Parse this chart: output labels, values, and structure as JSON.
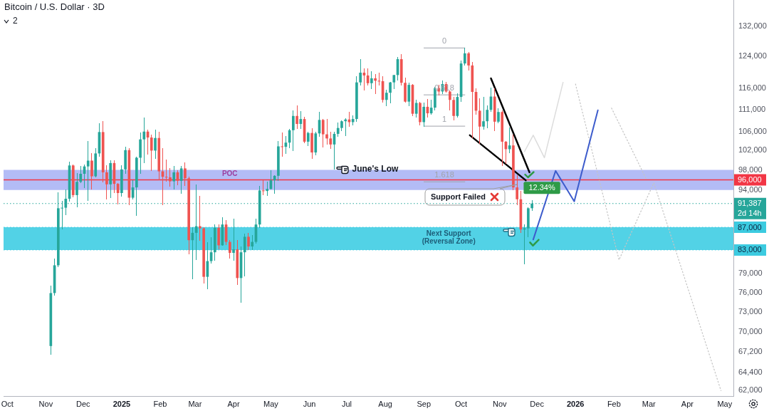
{
  "chart_data": {
    "type": "candlestick",
    "title": "Bitcoin / U.S. Dollar · 3D",
    "log": true,
    "xlim": [
      "2024-09-28",
      "2026-05-08"
    ],
    "xticks": [
      {
        "value": "2024-10-01",
        "label": "Oct"
      },
      {
        "value": "2024-11-01",
        "label": "Nov"
      },
      {
        "value": "2024-12-01",
        "label": "Dec"
      },
      {
        "value": "2025-01-01",
        "label": "2025"
      },
      {
        "value": "2025-02-01",
        "label": "Feb"
      },
      {
        "value": "2025-03-01",
        "label": "Mar"
      },
      {
        "value": "2025-04-01",
        "label": "Apr"
      },
      {
        "value": "2025-05-01",
        "label": "May"
      },
      {
        "value": "2025-06-01",
        "label": "Jun"
      },
      {
        "value": "2025-07-01",
        "label": "Jul"
      },
      {
        "value": "2025-08-01",
        "label": "Aug"
      },
      {
        "value": "2025-09-01",
        "label": "Sep"
      },
      {
        "value": "2025-10-01",
        "label": "Oct"
      },
      {
        "value": "2025-11-01",
        "label": "Nov"
      },
      {
        "value": "2025-12-01",
        "label": "Dec"
      },
      {
        "value": "2026-01-01",
        "label": "2026"
      },
      {
        "value": "2026-02-01",
        "label": "Feb"
      },
      {
        "value": "2026-03-01",
        "label": "Mar"
      },
      {
        "value": "2026-04-01",
        "label": "Apr"
      },
      {
        "value": "2026-05-01",
        "label": "May"
      }
    ],
    "ylim": [
      61300,
      139400
    ],
    "yticks": [
      {
        "value": 62000,
        "label": "62,000"
      },
      {
        "value": 64400,
        "label": "64,400"
      },
      {
        "value": 67200,
        "label": "67,200"
      },
      {
        "value": 70000,
        "label": "70,000"
      },
      {
        "value": 73000,
        "label": "73,000"
      },
      {
        "value": 76000,
        "label": "76,000"
      },
      {
        "value": 79000,
        "label": "79,000"
      },
      {
        "value": 94000,
        "label": "94,000"
      },
      {
        "value": 98000,
        "label": "98,000"
      },
      {
        "value": 102000,
        "label": "102,000"
      },
      {
        "value": 106000,
        "label": "106,000"
      },
      {
        "value": 111000,
        "label": "111,000"
      },
      {
        "value": 116000,
        "label": "116,000"
      },
      {
        "value": 124000,
        "label": "124,000"
      },
      {
        "value": 132000,
        "label": "132,000"
      }
    ],
    "x": [
      "2024-11-05",
      "2024-11-08",
      "2024-11-11",
      "2024-11-14",
      "2024-11-17",
      "2024-11-20",
      "2024-11-23",
      "2024-11-26",
      "2024-11-29",
      "2024-12-02",
      "2024-12-05",
      "2024-12-08",
      "2024-12-11",
      "2024-12-14",
      "2024-12-17",
      "2024-12-20",
      "2024-12-23",
      "2024-12-26",
      "2024-12-29",
      "2025-01-01",
      "2025-01-04",
      "2025-01-07",
      "2025-01-10",
      "2025-01-13",
      "2025-01-16",
      "2025-01-19",
      "2025-01-22",
      "2025-01-25",
      "2025-01-28",
      "2025-01-31",
      "2025-02-03",
      "2025-02-06",
      "2025-02-09",
      "2025-02-12",
      "2025-02-15",
      "2025-02-18",
      "2025-02-21",
      "2025-02-24",
      "2025-02-27",
      "2025-03-02",
      "2025-03-05",
      "2025-03-08",
      "2025-03-11",
      "2025-03-14",
      "2025-03-17",
      "2025-03-20",
      "2025-03-23",
      "2025-03-26",
      "2025-03-29",
      "2025-04-01",
      "2025-04-04",
      "2025-04-07",
      "2025-04-10",
      "2025-04-13",
      "2025-04-16",
      "2025-04-19",
      "2025-04-22",
      "2025-04-25",
      "2025-04-28",
      "2025-05-01",
      "2025-05-04",
      "2025-05-07",
      "2025-05-10",
      "2025-05-13",
      "2025-05-16",
      "2025-05-19",
      "2025-05-22",
      "2025-05-25",
      "2025-05-28",
      "2025-05-31",
      "2025-06-03",
      "2025-06-06",
      "2025-06-09",
      "2025-06-12",
      "2025-06-15",
      "2025-06-18",
      "2025-06-21",
      "2025-06-24",
      "2025-06-27",
      "2025-06-30",
      "2025-07-03",
      "2025-07-06",
      "2025-07-09",
      "2025-07-12",
      "2025-07-15",
      "2025-07-18",
      "2025-07-21",
      "2025-07-24",
      "2025-07-27",
      "2025-07-30",
      "2025-08-02",
      "2025-08-05",
      "2025-08-08",
      "2025-08-11",
      "2025-08-14",
      "2025-08-17",
      "2025-08-20",
      "2025-08-23",
      "2025-08-26",
      "2025-08-29",
      "2025-09-01",
      "2025-09-04",
      "2025-09-07",
      "2025-09-10",
      "2025-09-13",
      "2025-09-16",
      "2025-09-19",
      "2025-09-22",
      "2025-09-25",
      "2025-09-28",
      "2025-10-01",
      "2025-10-04",
      "2025-10-07",
      "2025-10-10",
      "2025-10-13",
      "2025-10-16",
      "2025-10-19",
      "2025-10-22",
      "2025-10-25",
      "2025-10-28",
      "2025-10-31",
      "2025-11-03",
      "2025-11-06",
      "2025-11-09",
      "2025-11-12",
      "2025-11-15",
      "2025-11-18",
      "2025-11-21",
      "2025-11-24",
      "2025-11-27"
    ],
    "ohlc": [
      [
        68000,
        77000,
        66800,
        75900
      ],
      [
        75900,
        81500,
        75600,
        80400
      ],
      [
        80400,
        93500,
        80200,
        90500
      ],
      [
        90500,
        91800,
        86700,
        90600
      ],
      [
        90600,
        94000,
        89300,
        92300
      ],
      [
        92300,
        99600,
        91800,
        98900
      ],
      [
        98900,
        99000,
        92600,
        93000
      ],
      [
        93000,
        97300,
        90800,
        95600
      ],
      [
        95600,
        98700,
        95400,
        97200
      ],
      [
        97200,
        99000,
        94500,
        98700
      ],
      [
        98700,
        104000,
        92000,
        99900
      ],
      [
        99900,
        101400,
        94200,
        96700
      ],
      [
        96700,
        102500,
        96600,
        101400
      ],
      [
        101400,
        107800,
        100800,
        106000
      ],
      [
        106000,
        108300,
        95600,
        97500
      ],
      [
        97500,
        98900,
        92200,
        95100
      ],
      [
        95100,
        99900,
        92500,
        99400
      ],
      [
        99400,
        99900,
        93500,
        95200
      ],
      [
        95200,
        95300,
        91300,
        93400
      ],
      [
        93400,
        98900,
        92800,
        98100
      ],
      [
        98100,
        102700,
        97300,
        102100
      ],
      [
        102100,
        102500,
        91200,
        92500
      ],
      [
        92500,
        95800,
        92200,
        94500
      ],
      [
        94500,
        100700,
        89200,
        100500
      ],
      [
        100500,
        105900,
        97300,
        104400
      ],
      [
        104400,
        109100,
        99500,
        106100
      ],
      [
        106100,
        106400,
        101200,
        104800
      ],
      [
        104800,
        105400,
        97800,
        102000
      ],
      [
        102000,
        106500,
        100300,
        104700
      ],
      [
        104700,
        106000,
        96000,
        97700
      ],
      [
        97700,
        102500,
        91200,
        96600
      ],
      [
        96600,
        100100,
        95700,
        96500
      ],
      [
        96500,
        98300,
        94700,
        95700
      ],
      [
        95700,
        98700,
        94100,
        97500
      ],
      [
        97500,
        97900,
        95000,
        95800
      ],
      [
        95800,
        98700,
        93400,
        98300
      ],
      [
        98300,
        99500,
        94900,
        96300
      ],
      [
        96300,
        96500,
        82300,
        84700
      ],
      [
        84700,
        87000,
        78200,
        86000
      ],
      [
        86000,
        95000,
        81400,
        87200
      ],
      [
        87200,
        92800,
        84700,
        86800
      ],
      [
        86800,
        86900,
        77500,
        78500
      ],
      [
        78500,
        84300,
        76600,
        81100
      ],
      [
        81100,
        85100,
        80800,
        82600
      ],
      [
        82600,
        87400,
        81200,
        86900
      ],
      [
        86900,
        87400,
        83200,
        83800
      ],
      [
        83800,
        88700,
        83800,
        87500
      ],
      [
        87500,
        88300,
        83900,
        84400
      ],
      [
        84400,
        84600,
        81600,
        82500
      ],
      [
        82500,
        88500,
        81200,
        83100
      ],
      [
        83100,
        84700,
        77200,
        78300
      ],
      [
        78300,
        83500,
        74500,
        82600
      ],
      [
        82600,
        85800,
        78600,
        85300
      ],
      [
        85300,
        85900,
        83000,
        83600
      ],
      [
        83600,
        85500,
        83100,
        84400
      ],
      [
        84400,
        88500,
        84200,
        87500
      ],
      [
        87500,
        94700,
        87000,
        93900
      ],
      [
        93900,
        95800,
        93000,
        93800
      ],
      [
        93800,
        95500,
        92900,
        94200
      ],
      [
        94200,
        97900,
        94100,
        95900
      ],
      [
        95900,
        96900,
        93400,
        96800
      ],
      [
        96800,
        104000,
        95800,
        102900
      ],
      [
        102900,
        105800,
        100800,
        102800
      ],
      [
        102800,
        105000,
        101400,
        103700
      ],
      [
        103700,
        106600,
        102600,
        106400
      ],
      [
        106400,
        110800,
        102000,
        109600
      ],
      [
        109600,
        112000,
        106700,
        107800
      ],
      [
        107800,
        110700,
        106800,
        108900
      ],
      [
        108900,
        109300,
        103700,
        103900
      ],
      [
        103900,
        106000,
        103100,
        105800
      ],
      [
        105800,
        106800,
        100400,
        101600
      ],
      [
        101600,
        106000,
        101100,
        105700
      ],
      [
        105700,
        110400,
        105100,
        108700
      ],
      [
        108700,
        108800,
        102800,
        105500
      ],
      [
        105500,
        108900,
        103400,
        104600
      ],
      [
        104600,
        106000,
        102400,
        103300
      ],
      [
        103300,
        106000,
        98200,
        105600
      ],
      [
        105600,
        108100,
        105000,
        106900
      ],
      [
        106900,
        108500,
        106300,
        108400
      ],
      [
        108400,
        109000,
        105200,
        108800
      ],
      [
        108800,
        110500,
        107300,
        108200
      ],
      [
        108200,
        109700,
        107500,
        108900
      ],
      [
        108900,
        118900,
        108400,
        117500
      ],
      [
        117500,
        123200,
        116900,
        119900
      ],
      [
        119900,
        120900,
        115700,
        119200
      ],
      [
        119200,
        120900,
        116800,
        117300
      ],
      [
        117300,
        120200,
        116000,
        118500
      ],
      [
        118500,
        119500,
        114700,
        117900
      ],
      [
        117900,
        119800,
        116900,
        117800
      ],
      [
        117800,
        118900,
        112700,
        113300
      ],
      [
        113300,
        115700,
        111900,
        115000
      ],
      [
        115000,
        117600,
        112600,
        117500
      ],
      [
        117500,
        119300,
        115900,
        119300
      ],
      [
        119300,
        123700,
        118100,
        123300
      ],
      [
        123300,
        124500,
        116800,
        117400
      ],
      [
        117400,
        118600,
        112700,
        112900
      ],
      [
        112900,
        117400,
        112000,
        116900
      ],
      [
        116900,
        117000,
        109600,
        110100
      ],
      [
        110100,
        113300,
        109300,
        112600
      ],
      [
        112600,
        112700,
        107500,
        108200
      ],
      [
        108200,
        112600,
        107300,
        111700
      ],
      [
        111700,
        113400,
        109300,
        110200
      ],
      [
        110200,
        113200,
        110000,
        111500
      ],
      [
        111500,
        116300,
        110900,
        116100
      ],
      [
        116100,
        116800,
        114400,
        115300
      ],
      [
        115300,
        117900,
        114800,
        117100
      ],
      [
        117100,
        117500,
        115100,
        115300
      ],
      [
        115300,
        115500,
        111000,
        113300
      ],
      [
        113300,
        113900,
        108600,
        109600
      ],
      [
        109600,
        114800,
        109300,
        114000
      ],
      [
        114000,
        122800,
        113000,
        122200
      ],
      [
        122200,
        126200,
        121700,
        124800
      ],
      [
        124800,
        125100,
        120600,
        121700
      ],
      [
        121700,
        122500,
        104800,
        115200
      ],
      [
        115200,
        116000,
        110000,
        110800
      ],
      [
        110800,
        113600,
        103500,
        107200
      ],
      [
        107200,
        114000,
        106600,
        108400
      ],
      [
        108400,
        112000,
        106900,
        111000
      ],
      [
        111000,
        116100,
        110700,
        114100
      ],
      [
        114100,
        116000,
        106300,
        108300
      ],
      [
        108300,
        111200,
        108000,
        110500
      ],
      [
        110500,
        110800,
        98900,
        103900
      ],
      [
        103900,
        104000,
        99300,
        102300
      ],
      [
        102300,
        107000,
        101600,
        103100
      ],
      [
        103100,
        105300,
        94000,
        94500
      ],
      [
        94500,
        96800,
        91200,
        92200
      ],
      [
        92200,
        93800,
        86100,
        86600
      ],
      [
        86600,
        87500,
        80600,
        86800
      ],
      [
        86800,
        90600,
        85300,
        90500
      ],
      [
        90500,
        91900,
        90100,
        91387
      ]
    ],
    "colors": [
      "#26a69a",
      "#26a69a",
      "#26a69a",
      "#26a69a",
      "#26a69a",
      "#26a69a",
      "#ef5350",
      "#26a69a",
      "#26a69a",
      "#26a69a",
      "#26a69a",
      "#ef5350",
      "#26a69a",
      "#26a69a",
      "#ef5350",
      "#ef5350",
      "#26a69a",
      "#ef5350",
      "#ef5350",
      "#26a69a",
      "#26a69a",
      "#ef5350",
      "#26a69a",
      "#26a69a",
      "#26a69a",
      "#26a69a",
      "#ef5350",
      "#ef5350",
      "#26a69a",
      "#ef5350",
      "#ef5350",
      "#ef5350",
      "#ef5350",
      "#26a69a",
      "#ef5350",
      "#26a69a",
      "#ef5350",
      "#ef5350",
      "#26a69a",
      "#26a69a",
      "#ef5350",
      "#ef5350",
      "#26a69a",
      "#26a69a",
      "#26a69a",
      "#ef5350",
      "#26a69a",
      "#ef5350",
      "#ef5350",
      "#26a69a",
      "#ef5350",
      "#26a69a",
      "#26a69a",
      "#ef5350",
      "#26a69a",
      "#26a69a",
      "#26a69a",
      "#ef5350",
      "#26a69a",
      "#26a69a",
      "#26a69a",
      "#26a69a",
      "#ef5350",
      "#26a69a",
      "#26a69a",
      "#26a69a",
      "#ef5350",
      "#26a69a",
      "#ef5350",
      "#26a69a",
      "#ef5350",
      "#26a69a",
      "#26a69a",
      "#ef5350",
      "#ef5350",
      "#ef5350",
      "#26a69a",
      "#26a69a",
      "#26a69a",
      "#26a69a",
      "#ef5350",
      "#26a69a",
      "#26a69a",
      "#26a69a",
      "#ef5350",
      "#ef5350",
      "#26a69a",
      "#ef5350",
      "#ef5350",
      "#ef5350",
      "#26a69a",
      "#26a69a",
      "#26a69a",
      "#26a69a",
      "#ef5350",
      "#ef5350",
      "#26a69a",
      "#ef5350",
      "#26a69a",
      "#ef5350",
      "#26a69a",
      "#ef5350",
      "#26a69a",
      "#26a69a",
      "#ef5350",
      "#26a69a",
      "#ef5350",
      "#ef5350",
      "#ef5350",
      "#26a69a",
      "#26a69a",
      "#26a69a",
      "#ef5350",
      "#ef5350",
      "#ef5350",
      "#ef5350",
      "#26a69a",
      "#26a69a",
      "#26a69a",
      "#ef5350",
      "#26a69a",
      "#ef5350",
      "#ef5350",
      "#26a69a",
      "#ef5350",
      "#ef5350",
      "#ef5350",
      "#26a69a",
      "#26a69a",
      "#26a69a"
    ],
    "series": [
      {
        "type": "line",
        "x": [
          "2025-10-25",
          "2025-11-25"
        ],
        "values": [
          118500,
          97500
        ],
        "color": "#000000"
      },
      {
        "type": "line",
        "x": [
          "2025-10-08",
          "2025-11-22"
        ],
        "values": [
          105300,
          95900
        ],
        "color": "#000000"
      },
      {
        "type": "line",
        "x": [
          "2025-11-28",
          "2025-12-16",
          "2025-12-31",
          "2026-01-19"
        ],
        "values": [
          84800,
          97800,
          91800,
          110900
        ],
        "color": "#3d5ccc"
      },
      {
        "type": "line",
        "x": [
          "2025-11-21",
          "2025-11-28",
          "2025-12-07",
          "2025-12-22"
        ],
        "values": [
          101800,
          105300,
          100500,
          117500
        ],
        "color": "#dcdcdc"
      },
      {
        "type": "line",
        "x": [
          "2026-01-01",
          "2026-02-05",
          "2026-03-05",
          "2026-04-28"
        ],
        "values": [
          117100,
          81300,
          95400,
          62000
        ],
        "color": "#c4c4c4",
        "line_style": "dotted"
      },
      {
        "type": "line",
        "x": [
          "2026-01-30",
          "2026-02-27"
        ],
        "values": [
          111400,
          96100
        ],
        "color": "#c4c4c4",
        "line_style": "dotted"
      },
      {
        "type": "line",
        "name": "0",
        "x": [
          "2025-09-01",
          "2025-10-04"
        ],
        "values": [
          126200,
          126200
        ],
        "color": "#a0a3ab"
      },
      {
        "type": "line",
        "name": "0.618",
        "x": [
          "2025-09-01",
          "2025-10-04"
        ],
        "values": [
          114500,
          114500
        ],
        "color": "#a0a3ab"
      },
      {
        "type": "line",
        "name": "1",
        "x": [
          "2025-09-01",
          "2025-10-04"
        ],
        "values": [
          107300,
          107300
        ],
        "color": "#a0a3ab"
      },
      {
        "type": "line",
        "name": "1.618",
        "x": [
          "2025-09-01",
          "2025-10-04"
        ],
        "values": [
          95600,
          95600
        ],
        "color": "#a0a3ab"
      }
    ],
    "bands": [
      {
        "axis": "y",
        "from": 94000,
        "to": 98000,
        "label": "POC",
        "color": "#b3bcf6"
      },
      {
        "axis": "y",
        "from": 83000,
        "to": 87000,
        "label": "Next Support\n(Reversal Zone)",
        "color": "#52d2e6"
      }
    ],
    "ref_lines": [
      {
        "axis": "y",
        "value": 96000,
        "label": "96,000",
        "color": "#f23645",
        "line_style": "solid"
      },
      {
        "axis": "y",
        "value": 91387,
        "label": "91,387\n2d 14h",
        "color": "#26a69a",
        "line_style": "dotted"
      },
      {
        "axis": "y",
        "value": 87000,
        "label": "87,000",
        "color": "#3ccbe0",
        "line_style": "dotted"
      },
      {
        "axis": "y",
        "value": 83000,
        "label": "83,000",
        "color": "#3ccbe0",
        "line_style": "dotted"
      }
    ],
    "annotations": [
      "2",
      {
        "text": "June's Low",
        "x": "2025-06-21",
        "y": 98200
      },
      "Support Failed",
      {
        "text": "12.34%",
        "x": "2025-12-05",
        "y": 94400
      }
    ]
  }
}
